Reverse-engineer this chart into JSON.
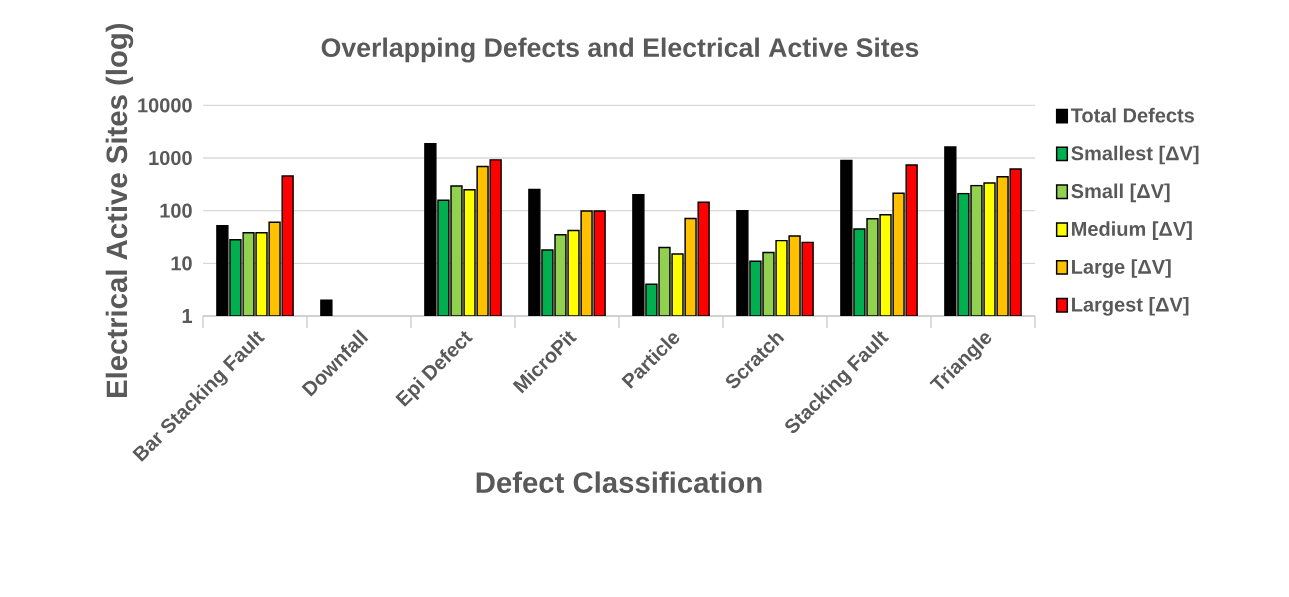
{
  "chart_data": {
    "type": "bar",
    "title": "Overlapping Defects and Electrical Active Sites",
    "xlabel": "Defect Classification",
    "ylabel": "Electrical Active Sites (log)",
    "categories": [
      "Bar Stacking Fault",
      "Downfall",
      "Epi Defect",
      "MicroPit",
      "Particle",
      "Scratch",
      "Stacking Fault",
      "Triangle"
    ],
    "series": [
      {
        "name": "Total Defects",
        "color": "#000000",
        "values": [
          52,
          2,
          1870,
          253,
          200,
          100,
          895,
          1615
        ]
      },
      {
        "name": "Smallest [ΔV]",
        "color": "#00b050",
        "values": [
          28,
          null,
          158,
          18,
          4,
          11,
          45,
          212
        ]
      },
      {
        "name": "Small [ΔV]",
        "color": "#92d050",
        "values": [
          38,
          null,
          293,
          35,
          20,
          16,
          70,
          301
        ]
      },
      {
        "name": "Medium [ΔV]",
        "color": "#ffff00",
        "values": [
          38,
          null,
          249,
          42,
          15,
          27,
          84,
          334
        ]
      },
      {
        "name": "Large [ΔV]",
        "color": "#ffc000",
        "values": [
          60,
          null,
          687,
          99,
          71,
          33,
          215,
          442
        ]
      },
      {
        "name": "Largest [ΔV]",
        "color": "#ff0000",
        "values": [
          455,
          null,
          922,
          99,
          144,
          25,
          740,
          620
        ]
      }
    ],
    "log": "y",
    "ylim": [
      1,
      10000
    ],
    "yticks": [
      1,
      10,
      100,
      1000,
      10000
    ],
    "grid": "y",
    "legend": "right"
  }
}
